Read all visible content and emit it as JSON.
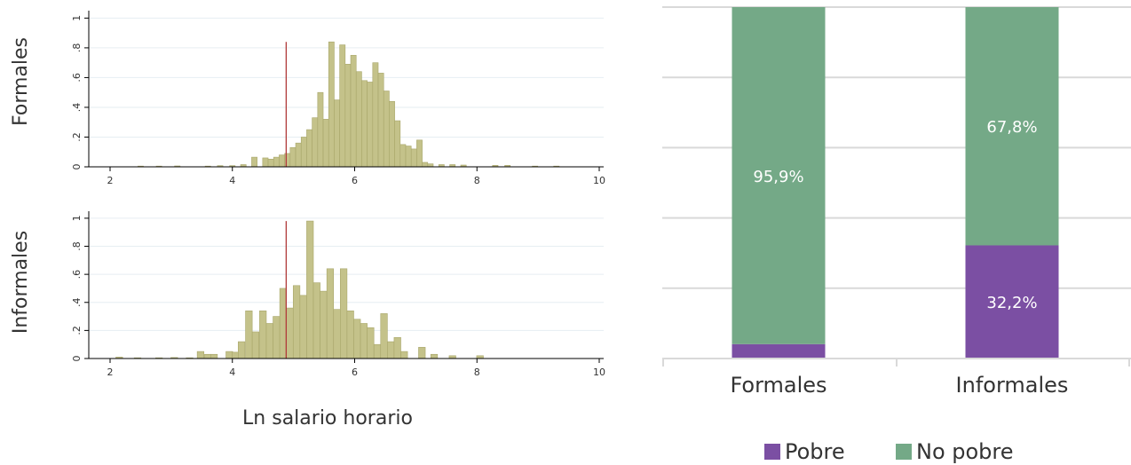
{
  "colors": {
    "hist_fill": "#c4c28a",
    "hist_edge": "#a8a66a",
    "poverty_line": "#b03a3a",
    "pobre": "#7b4fa3",
    "no_pobre": "#74a987",
    "grid": "#e6eef2",
    "axis": "#000000",
    "bar_grid": "#d9d9d9"
  },
  "chart_data": [
    {
      "type": "histogram",
      "panel": "Formales",
      "row_label": "Formales",
      "xlabel": "Ln salario horario",
      "xlim": [
        1.8,
        10.1
      ],
      "ylim": [
        0,
        1.05
      ],
      "xticks": [
        "2",
        "4",
        "6",
        "8",
        "10"
      ],
      "yticks": [
        "0",
        ".2",
        ".4",
        ".6",
        ".8",
        "1"
      ],
      "bin_width": 0.09,
      "poverty_line_x": 4.88,
      "poverty_line_height": 0.84,
      "bins": [
        [
          2.5,
          0.005
        ],
        [
          2.8,
          0.005
        ],
        [
          3.1,
          0.006
        ],
        [
          3.6,
          0.005
        ],
        [
          3.8,
          0.008
        ],
        [
          4.0,
          0.008
        ],
        [
          4.18,
          0.015
        ],
        [
          4.36,
          0.065
        ],
        [
          4.54,
          0.06
        ],
        [
          4.63,
          0.052
        ],
        [
          4.72,
          0.065
        ],
        [
          4.81,
          0.08
        ],
        [
          4.9,
          0.09
        ],
        [
          4.99,
          0.13
        ],
        [
          5.08,
          0.16
        ],
        [
          5.17,
          0.2
        ],
        [
          5.26,
          0.25
        ],
        [
          5.35,
          0.33
        ],
        [
          5.44,
          0.5
        ],
        [
          5.53,
          0.32
        ],
        [
          5.62,
          0.84
        ],
        [
          5.71,
          0.45
        ],
        [
          5.8,
          0.82
        ],
        [
          5.89,
          0.69
        ],
        [
          5.98,
          0.75
        ],
        [
          6.07,
          0.64
        ],
        [
          6.16,
          0.58
        ],
        [
          6.25,
          0.57
        ],
        [
          6.34,
          0.7
        ],
        [
          6.43,
          0.63
        ],
        [
          6.52,
          0.51
        ],
        [
          6.61,
          0.44
        ],
        [
          6.7,
          0.31
        ],
        [
          6.79,
          0.15
        ],
        [
          6.88,
          0.14
        ],
        [
          6.97,
          0.12
        ],
        [
          7.06,
          0.18
        ],
        [
          7.15,
          0.03
        ],
        [
          7.24,
          0.02
        ],
        [
          7.42,
          0.015
        ],
        [
          7.6,
          0.015
        ],
        [
          7.78,
          0.012
        ],
        [
          8.3,
          0.01
        ],
        [
          8.5,
          0.01
        ],
        [
          8.95,
          0.005
        ],
        [
          9.3,
          0.005
        ]
      ]
    },
    {
      "type": "histogram",
      "panel": "Informales",
      "row_label": "Informales",
      "xlabel": "Ln salario horario",
      "xlim": [
        1.8,
        10.1
      ],
      "ylim": [
        0,
        1.05
      ],
      "xticks": [
        "2",
        "4",
        "6",
        "8",
        "10"
      ],
      "yticks": [
        "0",
        ".2",
        ".4",
        ".6",
        ".8",
        "1"
      ],
      "bin_width": 0.11,
      "poverty_line_x": 4.88,
      "poverty_line_height": 0.98,
      "bins": [
        [
          2.15,
          0.01
        ],
        [
          2.45,
          0.005
        ],
        [
          2.8,
          0.005
        ],
        [
          3.05,
          0.007
        ],
        [
          3.3,
          0.005
        ],
        [
          3.48,
          0.05
        ],
        [
          3.6,
          0.03
        ],
        [
          3.7,
          0.03
        ],
        [
          3.95,
          0.05
        ],
        [
          4.05,
          0.045
        ],
        [
          4.15,
          0.12
        ],
        [
          4.27,
          0.34
        ],
        [
          4.38,
          0.19
        ],
        [
          4.5,
          0.34
        ],
        [
          4.61,
          0.25
        ],
        [
          4.72,
          0.3
        ],
        [
          4.83,
          0.5
        ],
        [
          4.94,
          0.36
        ],
        [
          5.05,
          0.52
        ],
        [
          5.16,
          0.45
        ],
        [
          5.27,
          0.98
        ],
        [
          5.38,
          0.54
        ],
        [
          5.49,
          0.48
        ],
        [
          5.6,
          0.64
        ],
        [
          5.71,
          0.35
        ],
        [
          5.82,
          0.64
        ],
        [
          5.93,
          0.34
        ],
        [
          6.04,
          0.28
        ],
        [
          6.15,
          0.25
        ],
        [
          6.26,
          0.22
        ],
        [
          6.37,
          0.1
        ],
        [
          6.48,
          0.32
        ],
        [
          6.59,
          0.12
        ],
        [
          6.7,
          0.15
        ],
        [
          6.81,
          0.05
        ],
        [
          7.1,
          0.08
        ],
        [
          7.3,
          0.03
        ],
        [
          7.6,
          0.02
        ],
        [
          8.05,
          0.02
        ]
      ]
    },
    {
      "type": "bar",
      "stacked": true,
      "categories": [
        "Formales",
        "Informales"
      ],
      "series": [
        {
          "name": "Pobre",
          "values": [
            4.1,
            32.2
          ],
          "labels": [
            "",
            "32,2%"
          ]
        },
        {
          "name": "No pobre",
          "values": [
            95.9,
            67.8
          ],
          "labels": [
            "95,9%",
            "67,8%"
          ]
        }
      ],
      "ylim": [
        0,
        100
      ],
      "legend": "bottom"
    }
  ]
}
